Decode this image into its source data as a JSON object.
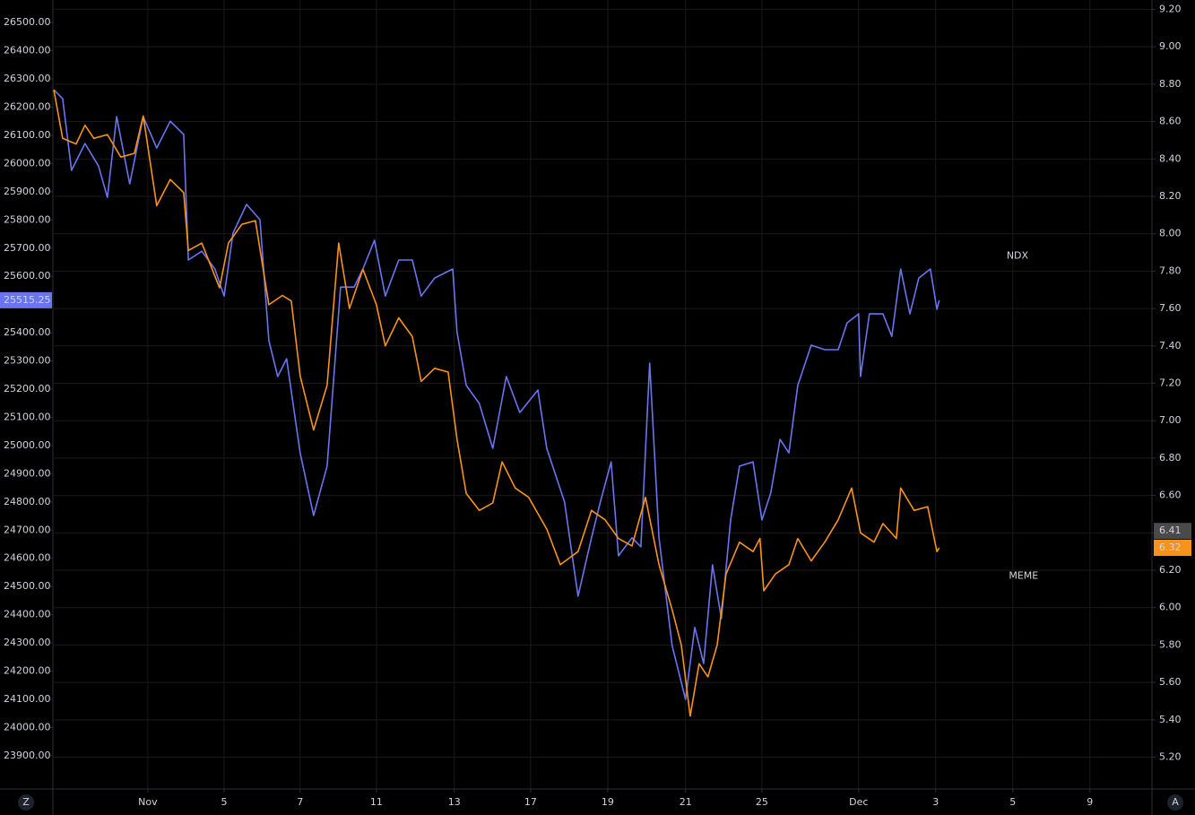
{
  "chart_data": {
    "type": "line",
    "xlim": [
      -2.44,
      26.05
    ],
    "xticks": [
      {
        "value": 0,
        "label": "Nov"
      },
      {
        "value": 1.98,
        "label": "5"
      },
      {
        "value": 3.95,
        "label": "7"
      },
      {
        "value": 5.93,
        "label": "11"
      },
      {
        "value": 7.95,
        "label": "13"
      },
      {
        "value": 9.93,
        "label": "17"
      },
      {
        "value": 11.93,
        "label": "19"
      },
      {
        "value": 13.95,
        "label": "21"
      },
      {
        "value": 15.93,
        "label": "25"
      },
      {
        "value": 18.44,
        "label": "Dec"
      },
      {
        "value": 20.44,
        "label": "3"
      },
      {
        "value": 22.44,
        "label": "5"
      },
      {
        "value": 24.44,
        "label": "9"
      }
    ],
    "ylim": [
      23782,
      26580
    ],
    "yticks": [
      {
        "value": 23900,
        "label": "23900.00"
      },
      {
        "value": 24000,
        "label": "24000.00"
      },
      {
        "value": 24100,
        "label": "24100.00"
      },
      {
        "value": 24200,
        "label": "24200.00"
      },
      {
        "value": 24300,
        "label": "24300.00"
      },
      {
        "value": 24400,
        "label": "24400.00"
      },
      {
        "value": 24500,
        "label": "24500.00"
      },
      {
        "value": 24600,
        "label": "24600.00"
      },
      {
        "value": 24700,
        "label": "24700.00"
      },
      {
        "value": 24800,
        "label": "24800.00"
      },
      {
        "value": 24900,
        "label": "24900.00"
      },
      {
        "value": 25000,
        "label": "25000.00"
      },
      {
        "value": 25100,
        "label": "25100.00"
      },
      {
        "value": 25200,
        "label": "25200.00"
      },
      {
        "value": 25300,
        "label": "25300.00"
      },
      {
        "value": 25400,
        "label": "25400.00"
      },
      {
        "value": 25500,
        "label": "25500.00"
      },
      {
        "value": 25600,
        "label": "25600.00"
      },
      {
        "value": 25700,
        "label": "25700.00"
      },
      {
        "value": 25800,
        "label": "25800.00"
      },
      {
        "value": 25900,
        "label": "25900.00"
      },
      {
        "value": 26000,
        "label": "26000.00"
      },
      {
        "value": 26100,
        "label": "26100.00"
      },
      {
        "value": 26200,
        "label": "26200.00"
      },
      {
        "value": 26300,
        "label": "26300.00"
      },
      {
        "value": 26400,
        "label": "26400.00"
      },
      {
        "value": 26500,
        "label": "26500.00"
      }
    ],
    "y2lim": [
      5.03,
      9.25
    ],
    "y2ticks": [
      {
        "value": 5.2,
        "label": "5.20"
      },
      {
        "value": 5.4,
        "label": "5.40"
      },
      {
        "value": 5.6,
        "label": "5.60"
      },
      {
        "value": 5.8,
        "label": "5.80"
      },
      {
        "value": 6.0,
        "label": "6.00"
      },
      {
        "value": 6.2,
        "label": "6.20"
      },
      {
        "value": 6.4,
        "label": "6.40"
      },
      {
        "value": 6.6,
        "label": "6.60"
      },
      {
        "value": 6.8,
        "label": "6.80"
      },
      {
        "value": 7.0,
        "label": "7.00"
      },
      {
        "value": 7.2,
        "label": "7.20"
      },
      {
        "value": 7.4,
        "label": "7.40"
      },
      {
        "value": 7.6,
        "label": "7.60"
      },
      {
        "value": 7.8,
        "label": "7.80"
      },
      {
        "value": 8.0,
        "label": "8.00"
      },
      {
        "value": 8.2,
        "label": "8.20"
      },
      {
        "value": 8.4,
        "label": "8.40"
      },
      {
        "value": 8.6,
        "label": "8.60"
      },
      {
        "value": 8.8,
        "label": "8.80"
      },
      {
        "value": 9.0,
        "label": "9.00"
      },
      {
        "value": 9.2,
        "label": "9.20"
      }
    ],
    "grid": true,
    "series": [
      {
        "name": "NDX",
        "color": "#6b74f0",
        "axis": "y",
        "last_label": "25515.25",
        "x": [
          -2.44,
          -2.21,
          -1.98,
          -1.63,
          -1.28,
          -1.05,
          -0.81,
          -0.47,
          -0.12,
          0.23,
          0.58,
          0.93,
          1.05,
          1.4,
          1.74,
          1.98,
          2.21,
          2.56,
          2.91,
          3.14,
          3.37,
          3.6,
          3.95,
          4.3,
          4.65,
          5.0,
          5.35,
          5.58,
          5.88,
          6.16,
          6.51,
          6.86,
          7.09,
          7.44,
          7.91,
          8.02,
          8.26,
          8.6,
          8.95,
          9.3,
          9.65,
          10.12,
          10.35,
          10.81,
          11.16,
          11.51,
          11.74,
          12.02,
          12.21,
          12.56,
          12.79,
          13.02,
          13.26,
          13.6,
          13.95,
          14.19,
          14.42,
          14.65,
          14.88,
          15.12,
          15.35,
          15.7,
          15.93,
          16.16,
          16.4,
          16.63,
          16.86,
          17.21,
          17.56,
          17.91,
          18.14,
          18.44,
          18.49,
          18.72,
          19.07,
          19.3,
          19.53,
          19.77,
          20.0,
          20.3,
          20.47,
          20.53
        ],
        "values": [
          26262,
          26230,
          25976,
          26071,
          25991,
          25880,
          26166,
          25928,
          26166,
          26055,
          26150,
          26103,
          25658,
          25689,
          25626,
          25530,
          25753,
          25855,
          25801,
          25372,
          25245,
          25308,
          24974,
          24752,
          24927,
          25562,
          25562,
          25626,
          25728,
          25530,
          25658,
          25658,
          25530,
          25594,
          25626,
          25403,
          25213,
          25149,
          24990,
          25245,
          25117,
          25197,
          24990,
          24800,
          24466,
          24673,
          24800,
          24942,
          24609,
          24673,
          24641,
          25292,
          24673,
          24291,
          24100,
          24355,
          24227,
          24577,
          24386,
          24736,
          24927,
          24942,
          24736,
          24832,
          25022,
          24974,
          25213,
          25356,
          25340,
          25340,
          25435,
          25467,
          25245,
          25467,
          25467,
          25387,
          25626,
          25467,
          25594,
          25626,
          25483,
          25515.25
        ]
      },
      {
        "name": "MEME",
        "color": "#f7931a",
        "axis": "y2",
        "last_label": "6.32",
        "x": [
          -2.44,
          -2.21,
          -1.86,
          -1.63,
          -1.4,
          -1.05,
          -0.7,
          -0.35,
          -0.12,
          0.23,
          0.58,
          0.93,
          1.05,
          1.4,
          1.86,
          2.09,
          2.44,
          2.79,
          3.14,
          3.49,
          3.72,
          3.95,
          4.3,
          4.65,
          4.95,
          5.23,
          5.58,
          5.93,
          6.16,
          6.51,
          6.86,
          7.09,
          7.44,
          7.79,
          8.02,
          8.26,
          8.6,
          8.95,
          9.19,
          9.53,
          9.88,
          10.35,
          10.7,
          11.16,
          11.51,
          11.86,
          12.21,
          12.56,
          12.91,
          13.26,
          13.6,
          13.84,
          14.07,
          14.3,
          14.53,
          14.77,
          15.0,
          15.35,
          15.7,
          15.88,
          15.98,
          16.28,
          16.63,
          16.86,
          17.21,
          17.56,
          17.91,
          18.26,
          18.49,
          18.84,
          19.07,
          19.42,
          19.53,
          19.88,
          20.23,
          20.47,
          20.53
        ],
        "values": [
          8.77,
          8.51,
          8.48,
          8.58,
          8.51,
          8.53,
          8.41,
          8.43,
          8.63,
          8.15,
          8.29,
          8.22,
          7.91,
          7.95,
          7.71,
          7.95,
          8.05,
          8.07,
          7.62,
          7.67,
          7.64,
          7.24,
          6.95,
          7.19,
          7.95,
          7.6,
          7.81,
          7.62,
          7.4,
          7.55,
          7.45,
          7.21,
          7.28,
          7.26,
          6.9,
          6.61,
          6.52,
          6.56,
          6.78,
          6.64,
          6.59,
          6.42,
          6.23,
          6.3,
          6.52,
          6.47,
          6.37,
          6.33,
          6.59,
          6.23,
          5.99,
          5.8,
          5.42,
          5.7,
          5.63,
          5.8,
          6.18,
          6.35,
          6.3,
          6.37,
          6.09,
          6.18,
          6.23,
          6.37,
          6.25,
          6.35,
          6.47,
          6.64,
          6.4,
          6.35,
          6.45,
          6.37,
          6.64,
          6.52,
          6.54,
          6.3,
          6.32
        ]
      }
    ],
    "markers": [
      {
        "axis": "y2",
        "value": 6.41,
        "color": "#4a4a4a"
      }
    ],
    "annotations": [
      {
        "text": "NDX",
        "x": 22.56,
        "y": 7.88
      },
      {
        "text": "MEME",
        "x": 22.72,
        "y": 6.17
      }
    ],
    "buttons": [
      "Z",
      "A"
    ]
  }
}
